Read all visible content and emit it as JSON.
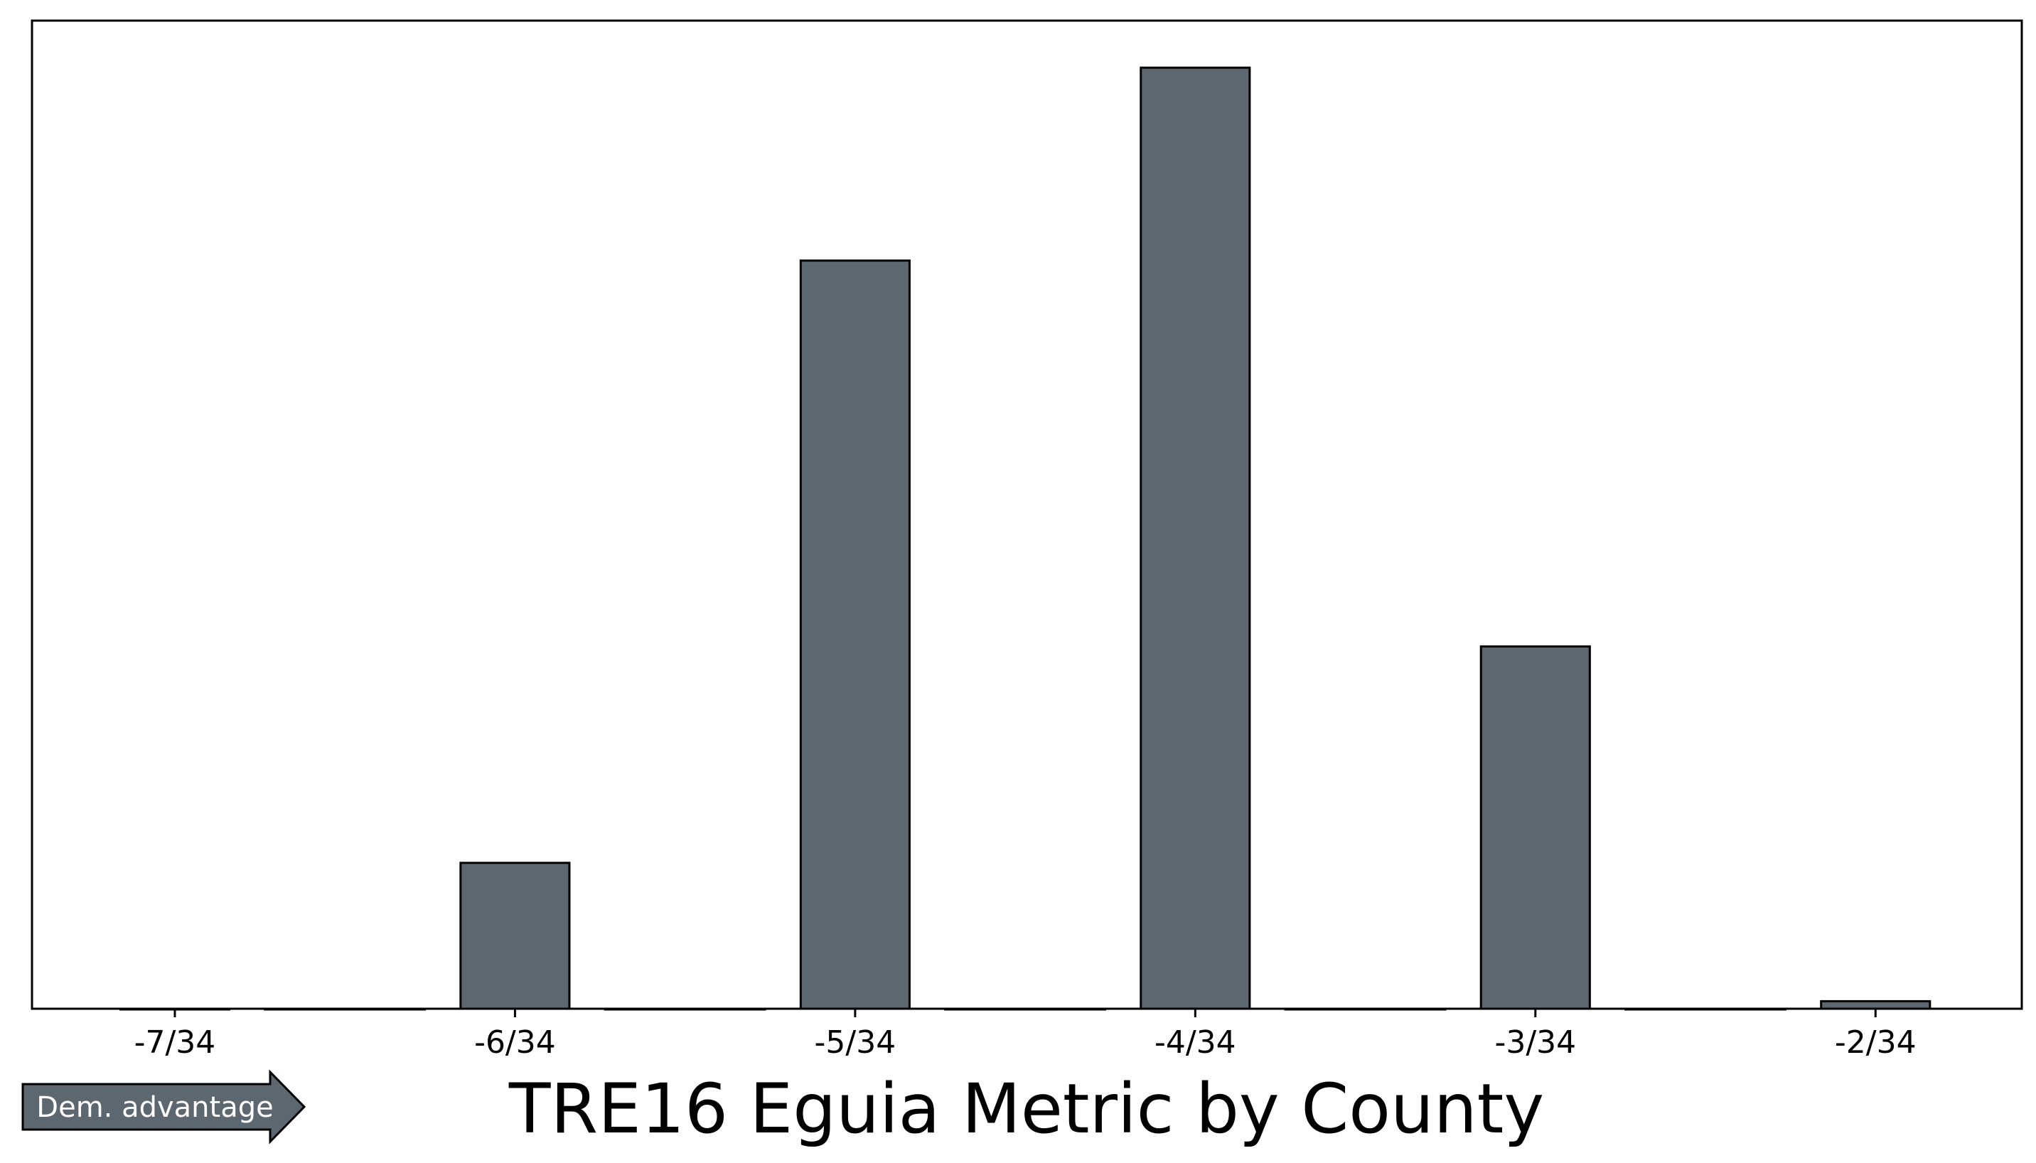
{
  "chart_data": {
    "type": "bar",
    "title": "TRE16 Eguia Metric by County",
    "xlabel": "",
    "ylabel": "",
    "x_tick_labels": [
      "-7/34",
      "-6/34",
      "-5/34",
      "-4/34",
      "-3/34",
      "-2/34"
    ],
    "x_tick_values": [
      -7,
      -6,
      -5,
      -4,
      -3,
      -2
    ],
    "x_unit_denominator": 34,
    "xlim": [
      -7.42,
      -1.57
    ],
    "ylim": [
      0,
      1.05
    ],
    "bars": [
      {
        "x": -7.0,
        "value": 0.0
      },
      {
        "x": -6.5,
        "value": 0.0
      },
      {
        "x": -6.0,
        "value": 0.155
      },
      {
        "x": -5.5,
        "value": 0.0
      },
      {
        "x": -5.0,
        "value": 0.795
      },
      {
        "x": -4.5,
        "value": 0.0
      },
      {
        "x": -4.0,
        "value": 1.0
      },
      {
        "x": -3.5,
        "value": 0.0
      },
      {
        "x": -3.0,
        "value": 0.385
      },
      {
        "x": -2.5,
        "value": 0.0
      },
      {
        "x": -2.0,
        "value": 0.008
      }
    ],
    "bar_color": "#5d6770",
    "edge_color": "#000000",
    "grid": false,
    "y_ticks_visible": false
  },
  "annotation": {
    "label": "Dem. advantage",
    "color": "#5d6770",
    "direction": "right"
  }
}
